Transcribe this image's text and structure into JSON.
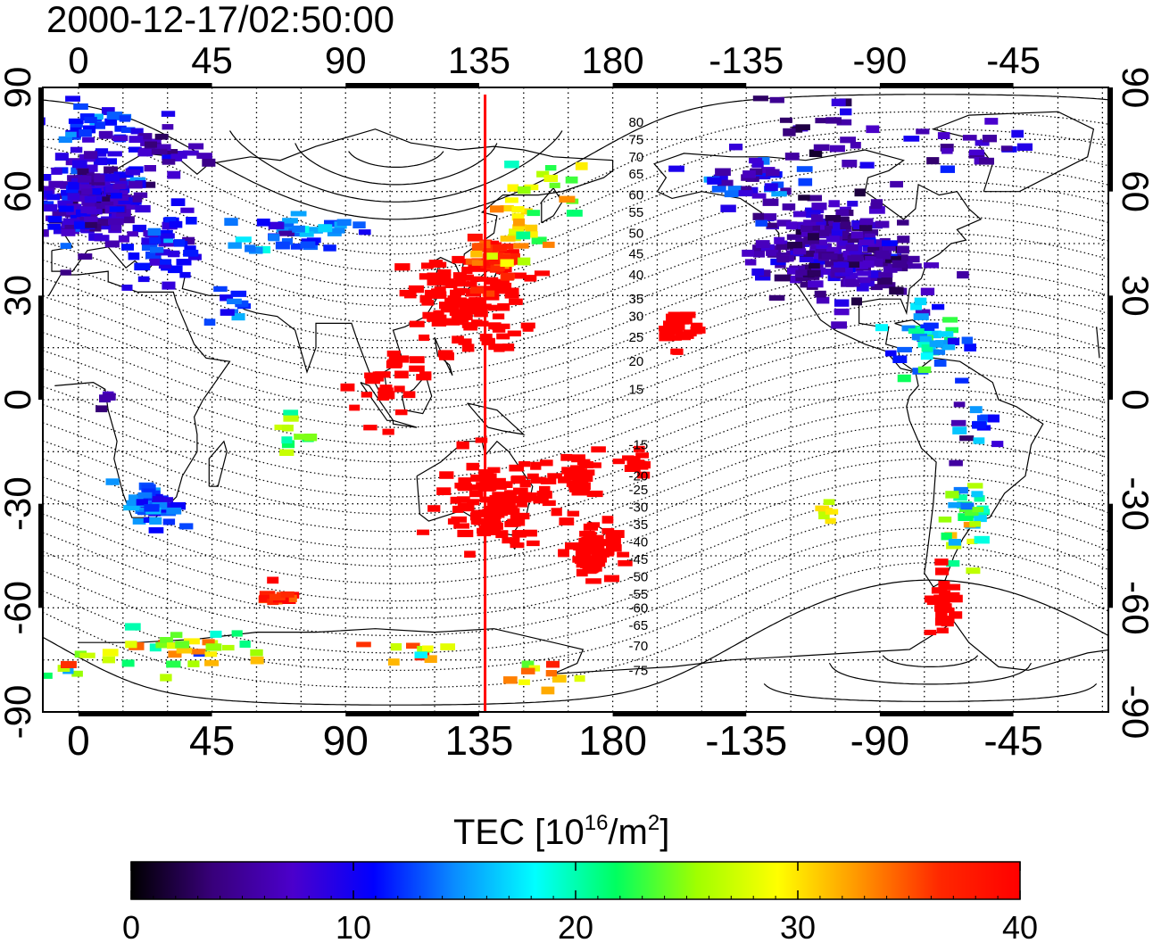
{
  "title": "2000-12-17/02:50:00",
  "map": {
    "lon_ticks": [
      "0",
      "45",
      "90",
      "135",
      "180",
      "-135",
      "-90",
      "-45"
    ],
    "lat_ticks": [
      "90",
      "60",
      "30",
      "0",
      "-30",
      "-60",
      "-90"
    ],
    "lon_range": [
      -12,
      347
    ],
    "lat_range": [
      -90,
      90
    ],
    "grid": "dotted every 15 degrees",
    "meridian_marker": {
      "lon": 137,
      "color": "#ff0000"
    },
    "contour_labels": [
      {
        "text": "80",
        "lat": 80,
        "lon": 189
      },
      {
        "text": "75",
        "lat": 75,
        "lon": 189
      },
      {
        "text": "70",
        "lat": 70,
        "lon": 189
      },
      {
        "text": "65",
        "lat": 65,
        "lon": 189
      },
      {
        "text": "60",
        "lat": 59,
        "lon": 189
      },
      {
        "text": "55",
        "lat": 54,
        "lon": 189
      },
      {
        "text": "50",
        "lat": 48,
        "lon": 189
      },
      {
        "text": "45",
        "lat": 42,
        "lon": 189
      },
      {
        "text": "40",
        "lat": 36,
        "lon": 189
      },
      {
        "text": "35",
        "lat": 29,
        "lon": 189
      },
      {
        "text": "30",
        "lat": 24,
        "lon": 189
      },
      {
        "text": "25",
        "lat": 18,
        "lon": 189
      },
      {
        "text": "20",
        "lat": 11,
        "lon": 189
      },
      {
        "text": "15",
        "lat": 3,
        "lon": 189
      },
      {
        "text": "-15",
        "lat": -13,
        "lon": 189
      },
      {
        "text": "-20",
        "lat": -22,
        "lon": 189
      },
      {
        "text": "-25",
        "lat": -26,
        "lon": 189
      },
      {
        "text": "-30",
        "lat": -31,
        "lon": 189
      },
      {
        "text": "-35",
        "lat": -36,
        "lon": 189
      },
      {
        "text": "-40",
        "lat": -41,
        "lon": 189
      },
      {
        "text": "-45",
        "lat": -46,
        "lon": 189
      },
      {
        "text": "-50",
        "lat": -51,
        "lon": 189
      },
      {
        "text": "-55",
        "lat": -56,
        "lon": 189
      },
      {
        "text": "-60",
        "lat": -60,
        "lon": 189
      },
      {
        "text": "-65",
        "lat": -65,
        "lon": 189
      },
      {
        "text": "-70",
        "lat": -71,
        "lon": 189
      },
      {
        "text": "-75",
        "lat": -78,
        "lon": 189
      }
    ],
    "tec_clusters": [
      {
        "lon": 5,
        "lat": 57,
        "sd_lon": 9,
        "sd_lat": 6,
        "n": 220,
        "value": 8,
        "spread": 2.5
      },
      {
        "lon": 30,
        "lat": 45,
        "sd_lon": 6,
        "sd_lat": 5,
        "n": 40,
        "value": 11,
        "spread": 2
      },
      {
        "lon": 5,
        "lat": 80,
        "sd_lon": 8,
        "sd_lat": 3,
        "n": 30,
        "value": 11,
        "spread": 2
      },
      {
        "lon": 25,
        "lat": 72,
        "sd_lon": 10,
        "sd_lat": 4,
        "n": 30,
        "value": 7,
        "spread": 2
      },
      {
        "lon": 75,
        "lat": 48,
        "sd_lon": 9,
        "sd_lat": 3,
        "n": 40,
        "value": 14,
        "spread": 3
      },
      {
        "lon": 50,
        "lat": 28,
        "sd_lon": 4,
        "sd_lat": 3,
        "n": 10,
        "value": 12,
        "spread": 2
      },
      {
        "lon": 130,
        "lat": 28,
        "sd_lon": 10,
        "sd_lat": 7,
        "n": 120,
        "value": 40,
        "spread": 0
      },
      {
        "lon": 140,
        "lat": 40,
        "sd_lon": 4,
        "sd_lat": 3,
        "n": 45,
        "value": 37,
        "spread": 2
      },
      {
        "lon": 148,
        "lat": 50,
        "sd_lon": 4,
        "sd_lat": 5,
        "n": 20,
        "value": 30,
        "spread": 2
      },
      {
        "lon": 160,
        "lat": 62,
        "sd_lon": 8,
        "sd_lat": 5,
        "n": 14,
        "value": 25,
        "spread": 4
      },
      {
        "lon": 105,
        "lat": 5,
        "sd_lon": 6,
        "sd_lat": 6,
        "n": 30,
        "value": 40,
        "spread": 0
      },
      {
        "lon": 140,
        "lat": -30,
        "sd_lon": 9,
        "sd_lat": 7,
        "n": 120,
        "value": 40,
        "spread": 0
      },
      {
        "lon": 173,
        "lat": -43,
        "sd_lon": 4,
        "sd_lat": 4,
        "n": 60,
        "value": 40,
        "spread": 0
      },
      {
        "lon": 168,
        "lat": -23,
        "sd_lon": 4,
        "sd_lat": 3,
        "n": 30,
        "value": 40,
        "spread": 0
      },
      {
        "lon": 185,
        "lat": -18,
        "sd_lon": 4,
        "sd_lat": 2,
        "n": 15,
        "value": 40,
        "spread": 0
      },
      {
        "lon": 203,
        "lat": 21,
        "sd_lon": 3,
        "sd_lat": 3,
        "n": 25,
        "value": 40,
        "spread": 0
      },
      {
        "lon": 25,
        "lat": -30,
        "sd_lon": 4,
        "sd_lat": 3,
        "n": 60,
        "value": 13,
        "spread": 2
      },
      {
        "lon": 10,
        "lat": 0,
        "sd_lon": 2,
        "sd_lat": 2,
        "n": 5,
        "value": 7,
        "spread": 2
      },
      {
        "lon": 73,
        "lat": -10,
        "sd_lon": 3,
        "sd_lat": 5,
        "n": 10,
        "value": 24,
        "spread": 4
      },
      {
        "lon": 67,
        "lat": -57,
        "sd_lon": 3,
        "sd_lat": 2,
        "n": 15,
        "value": 37,
        "spread": 2
      },
      {
        "lon": 38,
        "lat": -72,
        "sd_lon": 14,
        "sd_lat": 3,
        "n": 30,
        "value": 26,
        "spread": 6
      },
      {
        "lon": 2,
        "lat": -76,
        "sd_lon": 7,
        "sd_lat": 2,
        "n": 10,
        "value": 23,
        "spread": 5
      },
      {
        "lon": 115,
        "lat": -72,
        "sd_lon": 9,
        "sd_lat": 2,
        "n": 10,
        "value": 29,
        "spread": 4
      },
      {
        "lon": 155,
        "lat": -80,
        "sd_lon": 8,
        "sd_lat": 2,
        "n": 10,
        "value": 31,
        "spread": 3
      },
      {
        "lon": 255,
        "lat": 43,
        "sd_lon": 13,
        "sd_lat": 7,
        "n": 260,
        "value": 6,
        "spread": 2
      },
      {
        "lon": 225,
        "lat": 63,
        "sd_lon": 8,
        "sd_lat": 4,
        "n": 40,
        "value": 9,
        "spread": 3
      },
      {
        "lon": 285,
        "lat": 18,
        "sd_lon": 6,
        "sd_lat": 5,
        "n": 40,
        "value": 17,
        "spread": 4
      },
      {
        "lon": 250,
        "lat": 78,
        "sd_lon": 10,
        "sd_lat": 4,
        "n": 20,
        "value": 5,
        "spread": 2
      },
      {
        "lon": 300,
        "lat": 72,
        "sd_lon": 12,
        "sd_lat": 5,
        "n": 20,
        "value": 7,
        "spread": 2
      },
      {
        "lon": 300,
        "lat": -33,
        "sd_lon": 4,
        "sd_lat": 6,
        "n": 30,
        "value": 24,
        "spread": 5
      },
      {
        "lon": 292,
        "lat": -60,
        "sd_lon": 3,
        "sd_lat": 4,
        "n": 25,
        "value": 40,
        "spread": 0
      },
      {
        "lon": 300,
        "lat": -10,
        "sd_lon": 6,
        "sd_lat": 6,
        "n": 15,
        "value": 12,
        "spread": 5
      },
      {
        "lon": 252,
        "lat": -32,
        "sd_lon": 2,
        "sd_lat": 2,
        "n": 6,
        "value": 28,
        "spread": 2
      }
    ]
  },
  "colorbar": {
    "label_main": "TEC  [10",
    "label_exp": "16",
    "label_unit": "/m",
    "label_unit_exp": "2",
    "label_end": "]",
    "min": 0,
    "max": 40,
    "ticks": [
      "0",
      "10",
      "20",
      "30",
      "40"
    ],
    "colors": [
      "#000000",
      "#38007a",
      "#4b00cc",
      "#0000ff",
      "#0a8cff",
      "#00ffff",
      "#00ff60",
      "#a0ff00",
      "#ffff00",
      "#ff9600",
      "#ff2800",
      "#ff0000"
    ]
  }
}
